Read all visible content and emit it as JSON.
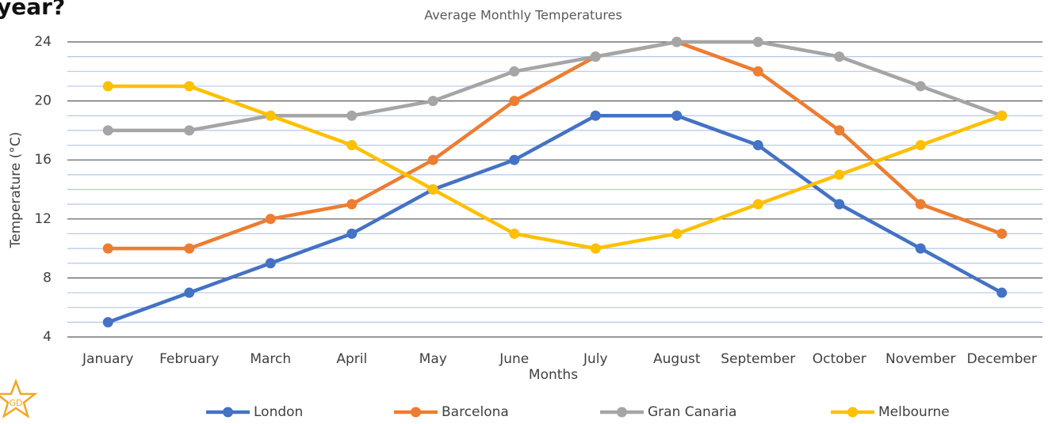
{
  "question": "year?",
  "badge": "GD",
  "chart_data": {
    "type": "line",
    "title": "Average Monthly Temperatures",
    "x_label": "Months",
    "y_label": "Temperature (°C)",
    "categories": [
      "January",
      "February",
      "March",
      "April",
      "May",
      "June",
      "July",
      "August",
      "September",
      "October",
      "November",
      "December"
    ],
    "series": [
      {
        "name": "London",
        "color": "#4472c4",
        "values": [
          5,
          7,
          9,
          11,
          14,
          16,
          19,
          19,
          17,
          13,
          10,
          7
        ]
      },
      {
        "name": "Barcelona",
        "color": "#ed7d31",
        "values": [
          10,
          10,
          12,
          13,
          16,
          20,
          23,
          24,
          22,
          18,
          13,
          11
        ]
      },
      {
        "name": "Gran Canaria",
        "color": "#a5a5a5",
        "values": [
          18,
          18,
          19,
          19,
          20,
          22,
          23,
          24,
          24,
          23,
          21,
          19
        ]
      },
      {
        "name": "Melbourne",
        "color": "#ffc000",
        "values": [
          21,
          21,
          19,
          17,
          14,
          11,
          10,
          11,
          13,
          15,
          17,
          19
        ]
      }
    ],
    "ylim": [
      4,
      24
    ],
    "yticks": [
      4,
      8,
      12,
      16,
      20,
      24
    ],
    "minor_yticks": [
      5,
      6,
      7,
      9,
      10,
      11,
      13,
      14,
      15,
      17,
      18,
      19,
      21,
      22,
      23
    ],
    "grid": true,
    "legend": "bottom"
  }
}
